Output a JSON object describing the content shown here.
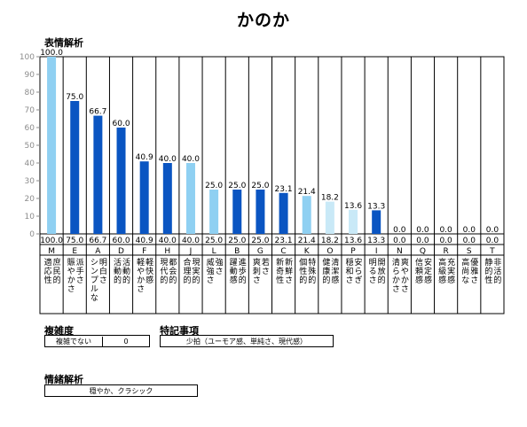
{
  "page": {
    "title": "かのか"
  },
  "sections": {
    "expression": "表情解析",
    "complexity": "複雑度",
    "notes": "特記事項",
    "emotion": "情緒解析"
  },
  "complexity": {
    "label": "複雑でない",
    "value": "0"
  },
  "notes": {
    "value": "少拍（ユーモア感、単純さ、現代感）"
  },
  "emotion": {
    "value": "穏やか、クラシック"
  },
  "colors": {
    "dark": "#0a55c2",
    "light": "#8fd0f2",
    "pale": "#c9e9f7"
  },
  "chart_data": {
    "type": "bar",
    "title": "表情解析",
    "ylim": [
      0,
      100
    ],
    "yticks": [
      0,
      10,
      20,
      30,
      40,
      50,
      60,
      70,
      80,
      90,
      100
    ],
    "grid": false,
    "categories": [
      "M",
      "E",
      "A",
      "D",
      "F",
      "H",
      "J",
      "L",
      "B",
      "G",
      "C",
      "K",
      "O",
      "P",
      "I",
      "N",
      "Q",
      "R",
      "S",
      "T"
    ],
    "values": [
      100.0,
      75.0,
      66.7,
      60.0,
      40.9,
      40.0,
      40.0,
      25.0,
      25.0,
      25.0,
      23.1,
      21.4,
      18.2,
      13.6,
      13.3,
      0.0,
      0.0,
      0.0,
      0.0,
      0.0
    ],
    "labels": [
      "100.0",
      "75.0",
      "66.7",
      "60.0",
      "40.9",
      "40.0",
      "40.0",
      "25.0",
      "25.0",
      "25.0",
      "23.1",
      "21.4",
      "18.2",
      "13.6",
      "13.3",
      "0.0",
      "0.0",
      "0.0",
      "0.0",
      "0.0"
    ],
    "shades": [
      "light",
      "dark",
      "dark",
      "dark",
      "dark",
      "dark",
      "light",
      "light",
      "dark",
      "dark",
      "dark",
      "light",
      "pale",
      "pale",
      "dark",
      "light",
      "light",
      "light",
      "light",
      "light"
    ],
    "descriptions": [
      [
        "庶民的",
        "適応性"
      ],
      [
        "派手さ",
        "賑やかさ"
      ],
      [
        "明白さ",
        "シンプルな"
      ],
      [
        "活動的",
        "活動的"
      ],
      [
        "軽快感",
        "軽やかさ"
      ],
      [
        "都会的",
        "現代的"
      ],
      [
        "現実的",
        "合理的"
      ],
      [
        "強さ",
        "威強さ"
      ],
      [
        "進歩的",
        "躍動感"
      ],
      [
        "若さ",
        "爽刺さ"
      ],
      [
        "新鮮さ",
        "新奇性"
      ],
      [
        "特殊的",
        "個性的"
      ],
      [
        "清潔感",
        "健康的"
      ],
      [
        "安らぎ",
        "穏和さ"
      ],
      [
        "開放的",
        "明るさ"
      ],
      [
        "爽やかさ",
        "清らかさ"
      ],
      [
        "安定感",
        "信頼感"
      ],
      [
        "充実感",
        "高級感"
      ],
      [
        "優雅さ",
        "高尚な"
      ],
      [
        "非活的",
        "静的性"
      ]
    ]
  }
}
